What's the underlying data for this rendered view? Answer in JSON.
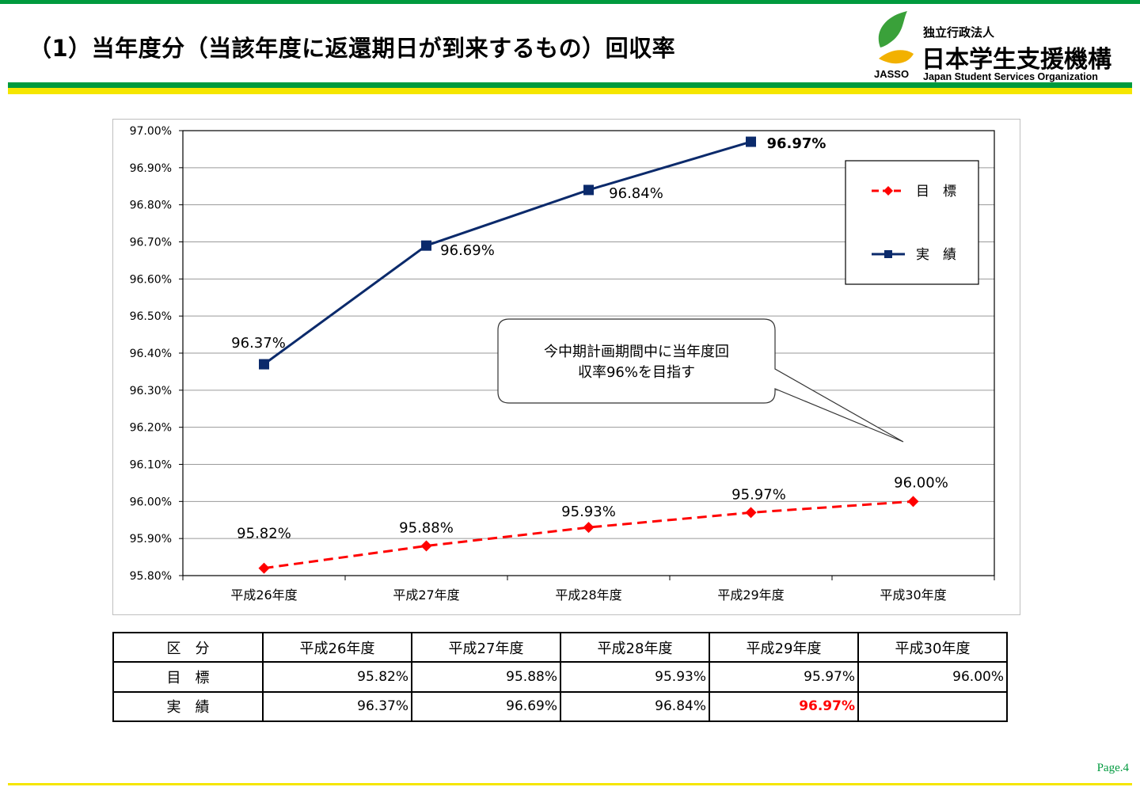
{
  "header": {
    "title": "（1）当年度分（当該年度に返還期日が到来するもの）回収率"
  },
  "logo": {
    "abbr": "JASSO",
    "sub": "独立行政法人",
    "name": "日本学生支援機構",
    "english": "Japan Student Services Organization",
    "colors": {
      "leaf": "#3aa13a",
      "swoosh": "#f2b100"
    }
  },
  "chart_data": {
    "type": "line",
    "categories": [
      "平成26年度",
      "平成27年度",
      "平成28年度",
      "平成29年度",
      "平成30年度"
    ],
    "ylim": [
      95.8,
      97.0
    ],
    "yticks": [
      "95.80%",
      "95.90%",
      "96.00%",
      "96.10%",
      "96.20%",
      "96.30%",
      "96.40%",
      "96.50%",
      "96.60%",
      "96.70%",
      "96.80%",
      "96.90%",
      "97.00%"
    ],
    "grid": true,
    "legend_position": "top-right",
    "series": [
      {
        "name": "目　標",
        "values": [
          95.82,
          95.88,
          95.93,
          95.97,
          96.0
        ],
        "labels": [
          "95.82%",
          "95.88%",
          "95.93%",
          "95.97%",
          "96.00%"
        ],
        "color": "#ff0000",
        "style": "dashed",
        "marker": "diamond"
      },
      {
        "name": "実　績",
        "values": [
          96.37,
          96.69,
          96.84,
          96.97,
          null
        ],
        "labels": [
          "96.37%",
          "96.69%",
          "96.84%",
          "96.97%",
          null
        ],
        "color": "#0b2a6b",
        "style": "solid",
        "marker": "square"
      }
    ],
    "annotation": {
      "lines": [
        "今中期計画期間中に当年度回",
        "収率96%を目指す"
      ]
    }
  },
  "table": {
    "header": [
      "区　分",
      "平成26年度",
      "平成27年度",
      "平成28年度",
      "平成29年度",
      "平成30年度"
    ],
    "rows": [
      {
        "label": "目　標",
        "cells": [
          "95.82%",
          "95.88%",
          "95.93%",
          "95.97%",
          "96.00%"
        ]
      },
      {
        "label": "実　績",
        "cells": [
          "96.37%",
          "96.69%",
          "96.84%",
          "96.97%",
          ""
        ]
      }
    ]
  },
  "footer": {
    "page": "Page.4"
  }
}
